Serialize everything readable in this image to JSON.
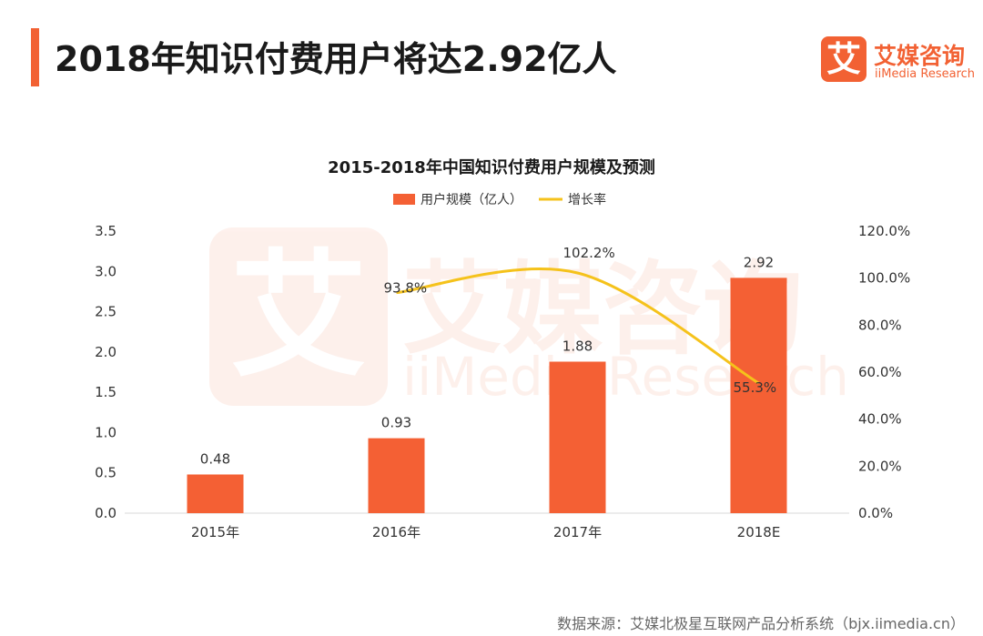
{
  "page": {
    "title": "2018年知识付费用户将达2.92亿人",
    "source": "数据来源：艾媒北极星互联网产品分析系统（bjx.iimedia.cn）"
  },
  "logo": {
    "mark": "艾",
    "name_cn": "艾媒咨询",
    "name_en": "iiMedia Research"
  },
  "watermark": {
    "mark": "艾",
    "name_cn": "艾媒咨询",
    "name_en": "iiMedia Research"
  },
  "colors": {
    "accent": "#f26133",
    "bar": "#f46034",
    "line": "#f5c21b"
  },
  "chart_data": {
    "type": "bar",
    "title": "2015-2018年中国知识付费用户规模及预测",
    "categories": [
      "2015年",
      "2016年",
      "2017年",
      "2018E"
    ],
    "series": [
      {
        "name": "用户规模（亿人）",
        "type": "bar",
        "axis": "left",
        "values": [
          0.48,
          0.93,
          1.88,
          2.92
        ],
        "labels": [
          "0.48",
          "0.93",
          "1.88",
          "2.92"
        ]
      },
      {
        "name": "增长率",
        "type": "line",
        "axis": "right",
        "values": [
          null,
          93.8,
          102.2,
          55.3
        ],
        "labels": [
          "",
          "93.8%",
          "102.2%",
          "55.3%"
        ]
      }
    ],
    "y_left": {
      "ylim": [
        0,
        3.5
      ],
      "ticks": [
        "0.0",
        "0.5",
        "1.0",
        "1.5",
        "2.0",
        "2.5",
        "3.0",
        "3.5"
      ]
    },
    "y_right": {
      "ylim": [
        0,
        120
      ],
      "ticks": [
        "0.0%",
        "20.0%",
        "40.0%",
        "60.0%",
        "80.0%",
        "100.0%",
        "120.0%"
      ]
    },
    "grid": false,
    "legend": "top-center"
  }
}
